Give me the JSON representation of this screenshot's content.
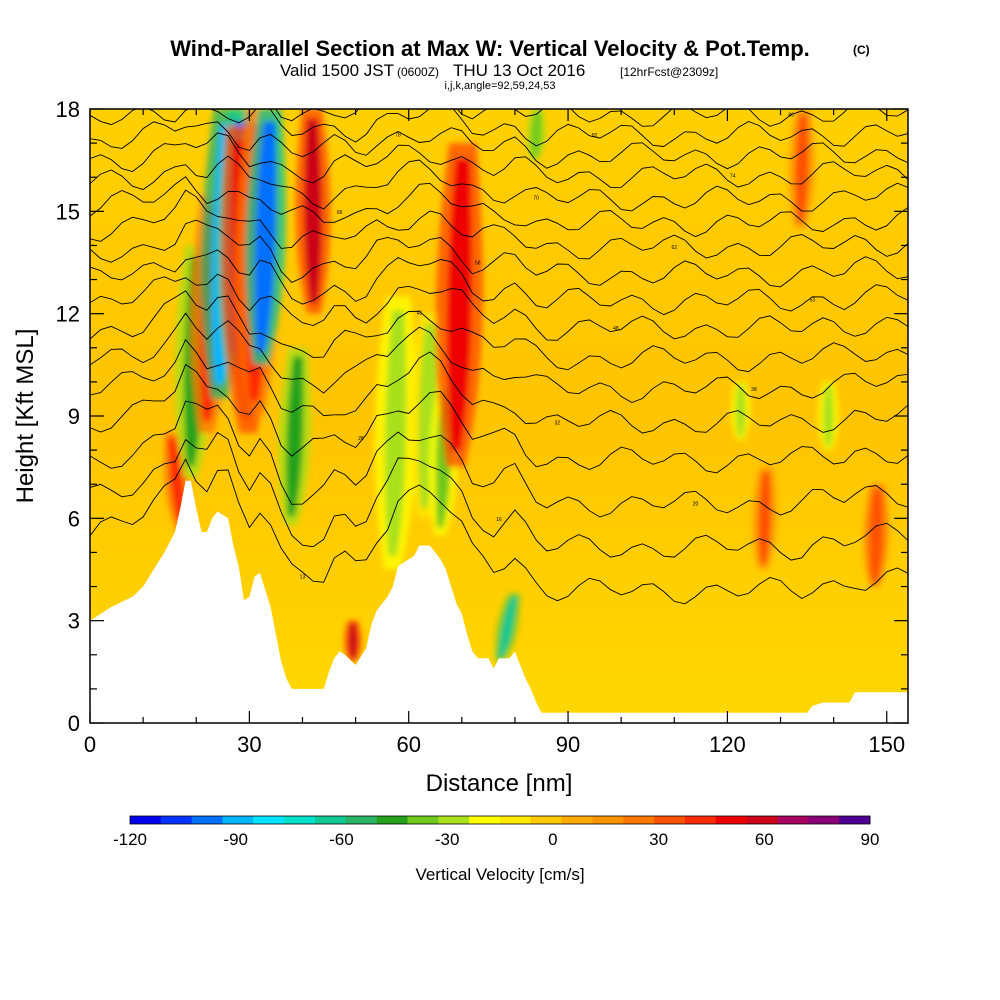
{
  "title": {
    "main": "Wind-Parallel Section at Max W: Vertical Velocity & Pot.Temp.",
    "copyright": "(C)",
    "valid_prefix": "Valid 1500 JST",
    "valid_utc": "(0600Z)",
    "valid_date": "THU 13 Oct 2016",
    "forecast": "[12hrFcst@2309z]",
    "section_params": "i,j,k,angle=92,59,24,53"
  },
  "chart_data": {
    "type": "heatmap",
    "xlabel": "Distance [nm]",
    "ylabel": "Height [Kft MSL]",
    "xlim": [
      0,
      154
    ],
    "ylim": [
      0,
      18
    ],
    "x_ticks": [
      "0",
      "30",
      "60",
      "90",
      "120",
      "150"
    ],
    "y_ticks": [
      "0",
      "3",
      "6",
      "9",
      "12",
      "15",
      "18"
    ],
    "x_tick_values": [
      0,
      30,
      60,
      90,
      120,
      150
    ],
    "y_tick_values": [
      0,
      3,
      6,
      9,
      12,
      15,
      18
    ],
    "terrain": [
      [
        0,
        3.0
      ],
      [
        4,
        3.4
      ],
      [
        8,
        3.7
      ],
      [
        10,
        4.0
      ],
      [
        12,
        4.5
      ],
      [
        14,
        5.0
      ],
      [
        16,
        5.6
      ],
      [
        17,
        6.3
      ],
      [
        18,
        7.1
      ],
      [
        19,
        7.1
      ],
      [
        20,
        6.3
      ],
      [
        21,
        5.6
      ],
      [
        22,
        5.6
      ],
      [
        23,
        6.0
      ],
      [
        24,
        6.2
      ],
      [
        26,
        6.0
      ],
      [
        27,
        5.2
      ],
      [
        28,
        4.6
      ],
      [
        29,
        3.6
      ],
      [
        30,
        3.7
      ],
      [
        31,
        4.3
      ],
      [
        32,
        4.4
      ],
      [
        33,
        3.9
      ],
      [
        34,
        3.4
      ],
      [
        35,
        2.6
      ],
      [
        36,
        1.8
      ],
      [
        37,
        1.3
      ],
      [
        38,
        1.0
      ],
      [
        44,
        1.0
      ],
      [
        45,
        1.5
      ],
      [
        46,
        1.9
      ],
      [
        47,
        2.1
      ],
      [
        48,
        2.0
      ],
      [
        50,
        1.7
      ],
      [
        52,
        2.2
      ],
      [
        53,
        2.9
      ],
      [
        54,
        3.3
      ],
      [
        55,
        3.5
      ],
      [
        56,
        3.7
      ],
      [
        57,
        4.0
      ],
      [
        58,
        4.6
      ],
      [
        60,
        4.8
      ],
      [
        61,
        4.9
      ],
      [
        62,
        5.2
      ],
      [
        64,
        5.2
      ],
      [
        66,
        4.8
      ],
      [
        67,
        4.5
      ],
      [
        68,
        4.0
      ],
      [
        69,
        3.5
      ],
      [
        70,
        3.2
      ],
      [
        71,
        2.6
      ],
      [
        72,
        2.1
      ],
      [
        73,
        1.9
      ],
      [
        75,
        1.9
      ],
      [
        76,
        1.6
      ],
      [
        77,
        1.9
      ],
      [
        79,
        1.9
      ],
      [
        80,
        2.1
      ],
      [
        81,
        1.7
      ],
      [
        82,
        1.3
      ],
      [
        83,
        1.0
      ],
      [
        84,
        0.6
      ],
      [
        85,
        0.3
      ],
      [
        90,
        0.3
      ],
      [
        100,
        0.3
      ],
      [
        115,
        0.3
      ],
      [
        135,
        0.3
      ],
      [
        136,
        0.5
      ],
      [
        138,
        0.6
      ],
      [
        143,
        0.6
      ],
      [
        144,
        0.9
      ],
      [
        154,
        0.9
      ]
    ],
    "isentrope_heights_at_x0": [
      3.7,
      5.0,
      6.3,
      7.6,
      8.7,
      9.7,
      10.6,
      11.5,
      12.3,
      13.1,
      13.9,
      14.6,
      15.3,
      16.0,
      16.6,
      17.2,
      17.8
    ],
    "isentrope_labels": [
      "13",
      "16",
      "20",
      "26",
      "32",
      "38",
      "43",
      "48",
      "53",
      "58",
      "62",
      "66",
      "70",
      "74",
      "78",
      "82",
      "86"
    ],
    "velocity_features": [
      {
        "x": 16.5,
        "y0": 5.5,
        "y1": 8.5,
        "w": -2,
        "value": 45
      },
      {
        "x": 19.5,
        "y0": 7.2,
        "y1": 14.0,
        "w": 1.0,
        "value": -45
      },
      {
        "x": 22.5,
        "y0": 8.5,
        "y1": 15.5,
        "w": 1.0,
        "value": 40
      },
      {
        "x": 25.0,
        "y0": 9.5,
        "y1": 18.0,
        "w": 1.2,
        "value": -90
      },
      {
        "x": 27.5,
        "y0": 10.5,
        "y1": 18.0,
        "w": 1.3,
        "value": -100
      },
      {
        "x": 29.0,
        "y0": 8.5,
        "y1": 17.5,
        "w": -1.5,
        "value": 50
      },
      {
        "x": 31.5,
        "y0": 9.0,
        "y1": 18.0,
        "w": 1.0,
        "value": 45
      },
      {
        "x": 33.0,
        "y0": 10.5,
        "y1": 18.0,
        "w": 1.5,
        "value": -100
      },
      {
        "x": 38.5,
        "y0": 5.8,
        "y1": 11.0,
        "w": 1.2,
        "value": -45
      },
      {
        "x": 42.0,
        "y0": 12.0,
        "y1": 18.0,
        "w": -0.3,
        "value": 55
      },
      {
        "x": 49.5,
        "y0": 1.8,
        "y1": 3.0,
        "w": 0.0,
        "value": 55
      },
      {
        "x": 57.5,
        "y0": 4.5,
        "y1": 12.5,
        "w": 1.0,
        "value": -30
      },
      {
        "x": 63.5,
        "y0": 6.0,
        "y1": 12.0,
        "w": 1.0,
        "value": -25
      },
      {
        "x": 66.5,
        "y0": 5.5,
        "y1": 10.0,
        "w": 1.0,
        "value": -35
      },
      {
        "x": 69.5,
        "y0": 7.5,
        "y1": 17.0,
        "w": 1.2,
        "value": 50
      },
      {
        "x": 78.5,
        "y0": 1.8,
        "y1": 3.8,
        "w": 2.5,
        "value": -60
      },
      {
        "x": 84.0,
        "y0": 16.5,
        "y1": 18.0,
        "w": 0.5,
        "value": -40
      },
      {
        "x": 122.5,
        "y0": 8.3,
        "y1": 10.0,
        "w": 0.0,
        "value": -30
      },
      {
        "x": 127.0,
        "y0": 4.5,
        "y1": 7.5,
        "w": 0.5,
        "value": 30
      },
      {
        "x": 134.0,
        "y0": 14.5,
        "y1": 18.0,
        "w": 0.5,
        "value": 30
      },
      {
        "x": 139.0,
        "y0": 8.0,
        "y1": 10.0,
        "w": 0.0,
        "value": -30
      },
      {
        "x": 148.0,
        "y0": 4.0,
        "y1": 7.0,
        "w": 0.5,
        "value": 35
      }
    ],
    "colorbar": {
      "title": "Vertical Velocity [cm/s]",
      "tick_labels": [
        "-120",
        "-90",
        "-60",
        "-30",
        "0",
        "30",
        "60",
        "90"
      ],
      "tick_values": [
        -120,
        -90,
        -60,
        -30,
        0,
        30,
        60,
        90
      ],
      "colors": [
        "#0000f0",
        "#0033ff",
        "#0070ff",
        "#00b5ff",
        "#00e6ff",
        "#00e0c8",
        "#10c894",
        "#2ab468",
        "#24a21e",
        "#6ec81e",
        "#a8e01c",
        "#ffff00",
        "#ffe800",
        "#ffc800",
        "#ffaa00",
        "#ff9400",
        "#ff7800",
        "#ff5000",
        "#ff2a00",
        "#ee0000",
        "#cc0018",
        "#a80060",
        "#8a0078",
        "#500090"
      ]
    }
  }
}
